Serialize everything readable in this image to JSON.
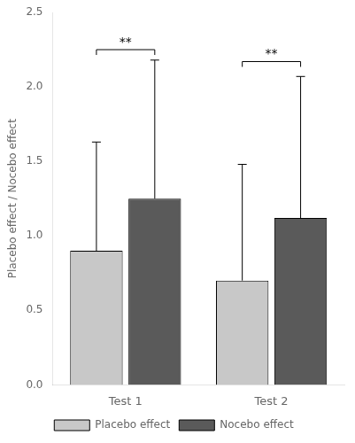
{
  "chart_data": {
    "type": "bar",
    "categories": [
      "Test 1",
      "Test 2"
    ],
    "series": [
      {
        "name": "Placebo effect",
        "color": "#c8c8c8",
        "values": [
          0.9,
          0.7
        ],
        "error_up": [
          0.73,
          0.78
        ]
      },
      {
        "name": "Nocebo effect",
        "color": "#5a5a5a",
        "values": [
          1.25,
          1.12
        ],
        "error_up": [
          0.93,
          0.95
        ]
      }
    ],
    "ylabel": "Placebo effect / Nocebo effect",
    "ylim": [
      0,
      2.5
    ],
    "yticks": [
      {
        "value": 0,
        "label": "0.0"
      },
      0.5,
      {
        "value": 1.0,
        "label": "1.0"
      },
      1.5,
      {
        "value": 2.0,
        "label": "2.0"
      },
      2.5
    ],
    "annotations": [
      {
        "text": "**",
        "category": "Test 1",
        "y": 2.25
      },
      {
        "text": "**",
        "category": "Test 2",
        "y": 2.17
      }
    ],
    "legend": "bottom",
    "grid": false
  }
}
